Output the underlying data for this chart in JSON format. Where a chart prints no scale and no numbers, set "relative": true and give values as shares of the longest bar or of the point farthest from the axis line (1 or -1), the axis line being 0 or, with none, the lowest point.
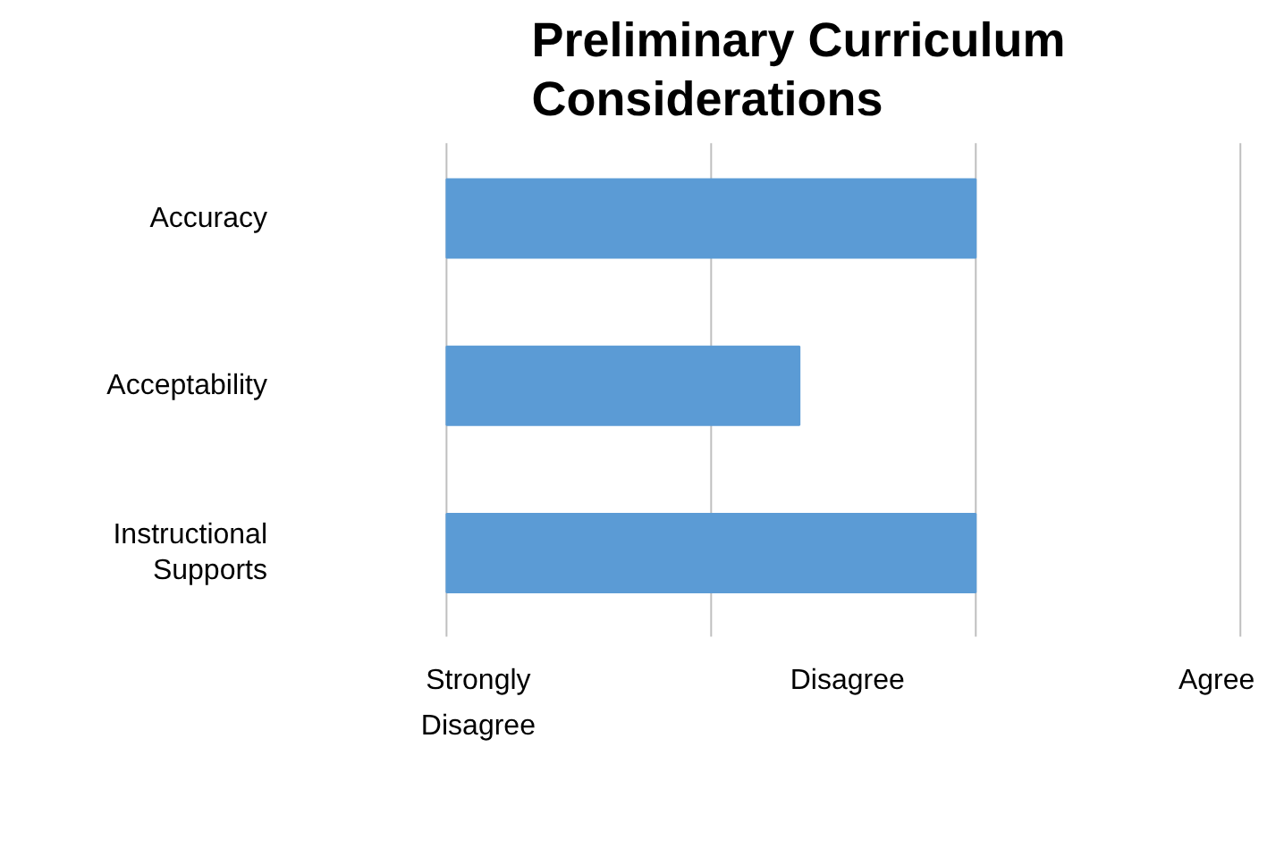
{
  "chart_data": {
    "type": "bar",
    "orientation": "horizontal",
    "title": "Preliminary Curriculum Considerations",
    "categories": [
      "Accuracy",
      "Acceptability",
      "Instructional Supports"
    ],
    "values": [
      1,
      0.667,
      1
    ],
    "color": "#5b9bd5",
    "relative": true,
    "annotations": [
      "Strongly Disagree",
      "Disagree",
      "Agree"
    ],
    "ref_lines": [
      {
        "axis": "x",
        "value": 0,
        "color": "#bfbfbf"
      },
      {
        "axis": "x",
        "value": 0.5,
        "color": "#bfbfbf"
      },
      {
        "axis": "x",
        "value": 1,
        "color": "#bfbfbf"
      },
      {
        "axis": "x",
        "value": 1.5,
        "color": "#bfbfbf"
      }
    ]
  }
}
